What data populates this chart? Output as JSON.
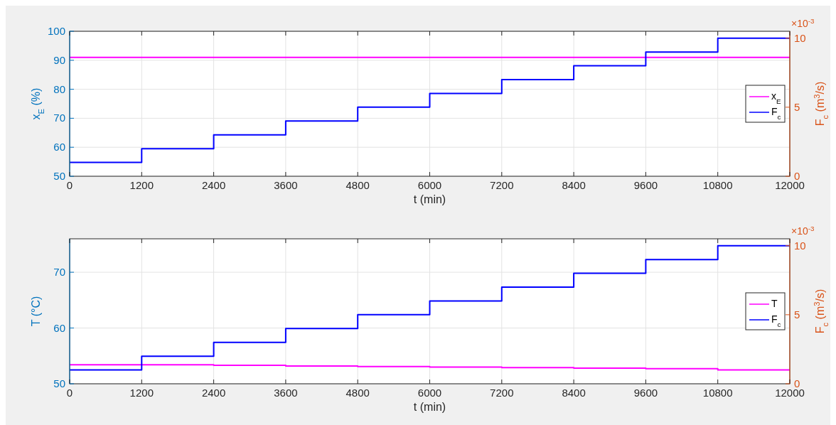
{
  "chart_data": [
    {
      "type": "step",
      "xlabel": "t (min)",
      "ylabel": "x$_{E}$ (%)",
      "y2label": "F$_{c}$ (m$^{3}$/s)",
      "annotations": [
        "×10$^{-3}$"
      ],
      "x": [
        0,
        1200,
        2400,
        3600,
        4800,
        6000,
        7200,
        8400,
        9600,
        10800,
        12000
      ],
      "series": [
        {
          "name": "x$_{E}$",
          "color": "#ff00ff",
          "values": [
            91,
            91,
            91,
            91,
            91,
            91,
            91,
            91,
            91,
            91,
            91
          ]
        },
        {
          "name": "F$_{c}$",
          "color": "#0000ff",
          "axis": "y2",
          "values": [
            1,
            2,
            3,
            4,
            5,
            6,
            7,
            8,
            9,
            10,
            10
          ]
        }
      ],
      "xlim": [
        0,
        12000
      ],
      "xticks": [
        0,
        1200,
        2400,
        3600,
        4800,
        6000,
        7200,
        8400,
        9600,
        10800,
        12000
      ],
      "ylim": [
        50,
        100
      ],
      "yticks": [
        50,
        60,
        70,
        80,
        90,
        100
      ],
      "y2lim": [
        0,
        10.5
      ],
      "y2ticks": [
        0,
        5,
        10
      ],
      "grid": true,
      "legend": "right",
      "line_style": "solid",
      "marker": "none"
    },
    {
      "type": "step",
      "xlabel": "t (min)",
      "ylabel": "T (°C)",
      "y2label": "F$_{c}$ (m$^{3}$/s)",
      "annotations": [
        "×10$^{-3}$"
      ],
      "x": [
        0,
        1200,
        2400,
        3600,
        4800,
        6000,
        7200,
        8400,
        9600,
        10800,
        12000
      ],
      "series": [
        {
          "name": "T",
          "color": "#ff00ff",
          "values": [
            53.4,
            53.4,
            53.3,
            53.2,
            53.1,
            53.0,
            52.9,
            52.8,
            52.7,
            52.5,
            52.5
          ]
        },
        {
          "name": "F$_{c}$",
          "color": "#0000ff",
          "axis": "y2",
          "values": [
            1,
            2,
            3,
            4,
            5,
            6,
            7,
            8,
            9,
            10,
            10
          ]
        }
      ],
      "xlim": [
        0,
        12000
      ],
      "xticks": [
        0,
        1200,
        2400,
        3600,
        4800,
        6000,
        7200,
        8400,
        9600,
        10800,
        12000
      ],
      "ylim": [
        50,
        76
      ],
      "yticks": [
        50,
        60,
        70
      ],
      "y2lim": [
        0,
        10.5
      ],
      "y2ticks": [
        0,
        5,
        10
      ],
      "grid": true,
      "legend": "right",
      "line_style": "solid",
      "marker": "none"
    }
  ]
}
